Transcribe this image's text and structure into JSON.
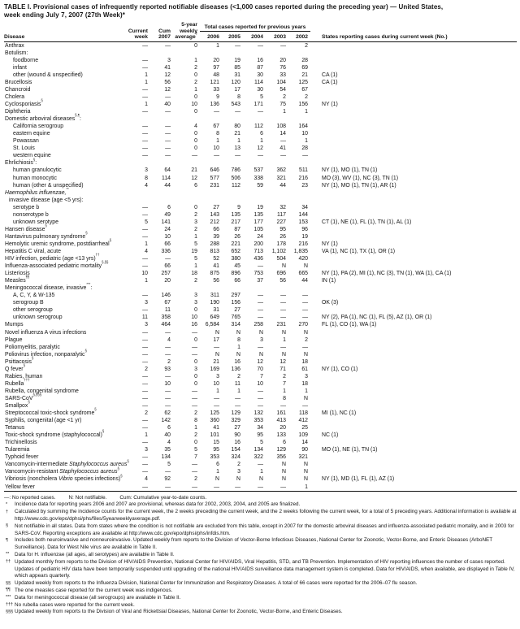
{
  "title": {
    "line1": "TABLE I. Provisional cases of infrequently reported notifiable diseases (<1,000 cases reported during the preceding year) — United States,",
    "line2": "week ending July 7, 2007 (27th Week)*"
  },
  "header": {
    "disease": "Disease",
    "current_week": "Current\nweek",
    "cum": "Cum\n2007",
    "avg": "5-year\nweekly\naverage",
    "avg_sup": "†",
    "span": "Total cases reported for previous years",
    "years": [
      "2006",
      "2005",
      "2004",
      "2003",
      "2002"
    ],
    "states": "States reporting cases during current week (No.)"
  },
  "rows": [
    {
      "label": "Anthrax",
      "indent": 0,
      "v": [
        "—",
        "—",
        "0",
        "1",
        "—",
        "—",
        "—",
        "2"
      ],
      "s": ""
    },
    {
      "label": "Botulism:",
      "indent": 0,
      "v": [
        "",
        "",
        "",
        "",
        "",
        "",
        "",
        ""
      ],
      "s": ""
    },
    {
      "label": "foodborne",
      "indent": 2,
      "v": [
        "—",
        "3",
        "1",
        "20",
        "19",
        "16",
        "20",
        "28"
      ],
      "s": ""
    },
    {
      "label": "infant",
      "indent": 2,
      "v": [
        "—",
        "41",
        "2",
        "97",
        "85",
        "87",
        "76",
        "69"
      ],
      "s": ""
    },
    {
      "label": "other (wound & unspecified)",
      "indent": 2,
      "v": [
        "1",
        "12",
        "0",
        "48",
        "31",
        "30",
        "33",
        "21"
      ],
      "s": "CA (1)"
    },
    {
      "label": "Brucellosis",
      "indent": 0,
      "v": [
        "1",
        "56",
        "2",
        "121",
        "120",
        "114",
        "104",
        "125"
      ],
      "s": "CA (1)"
    },
    {
      "label": "Chancroid",
      "indent": 0,
      "v": [
        "—",
        "12",
        "1",
        "33",
        "17",
        "30",
        "54",
        "67"
      ],
      "s": ""
    },
    {
      "label": "Cholera",
      "indent": 0,
      "v": [
        "—",
        "—",
        "0",
        "9",
        "8",
        "5",
        "2",
        "2"
      ],
      "s": ""
    },
    {
      "label": "Cyclosporiasis",
      "sup": "§",
      "indent": 0,
      "v": [
        "1",
        "40",
        "10",
        "136",
        "543",
        "171",
        "75",
        "156"
      ],
      "s": "NY (1)"
    },
    {
      "label": "Diphtheria",
      "indent": 0,
      "v": [
        "—",
        "—",
        "0",
        "—",
        "—",
        "—",
        "1",
        "1"
      ],
      "s": ""
    },
    {
      "label": "Domestic arboviral diseases",
      "sup": "§,¶",
      "post": ":",
      "indent": 0,
      "v": [
        "",
        "",
        "",
        "",
        "",
        "",
        "",
        ""
      ],
      "s": ""
    },
    {
      "label": "California serogroup",
      "indent": 2,
      "v": [
        "—",
        "—",
        "4",
        "67",
        "80",
        "112",
        "108",
        "164"
      ],
      "s": ""
    },
    {
      "label": "eastern equine",
      "indent": 2,
      "v": [
        "—",
        "—",
        "0",
        "8",
        "21",
        "6",
        "14",
        "10"
      ],
      "s": ""
    },
    {
      "label": "Powassan",
      "indent": 2,
      "v": [
        "—",
        "—",
        "0",
        "1",
        "1",
        "1",
        "—",
        "1"
      ],
      "s": ""
    },
    {
      "label": "St. Louis",
      "indent": 2,
      "v": [
        "—",
        "—",
        "0",
        "10",
        "13",
        "12",
        "41",
        "28"
      ],
      "s": ""
    },
    {
      "label": "western equine",
      "indent": 2,
      "v": [
        "—",
        "—",
        "—",
        "—",
        "—",
        "—",
        "—",
        "—"
      ],
      "s": ""
    },
    {
      "label": "Ehrlichiosis",
      "sup": "§",
      "post": ":",
      "indent": 0,
      "v": [
        "",
        "",
        "",
        "",
        "",
        "",
        "",
        ""
      ],
      "s": ""
    },
    {
      "label": "human granulocytic",
      "indent": 2,
      "v": [
        "3",
        "64",
        "21",
        "646",
        "786",
        "537",
        "362",
        "511"
      ],
      "s": "NY (1), MO (1), TN (1)"
    },
    {
      "label": "human monocytic",
      "indent": 2,
      "v": [
        "8",
        "114",
        "12",
        "577",
        "506",
        "338",
        "321",
        "216"
      ],
      "s": "MO (3), WV (1), NC (3), TN (1)"
    },
    {
      "label": "human (other & unspecified)",
      "indent": 2,
      "v": [
        "4",
        "44",
        "6",
        "231",
        "112",
        "59",
        "44",
        "23"
      ],
      "s": "NY (1), MO (1), TN (1), AR (1)"
    },
    {
      "parts": [
        {
          "t": "Haemophilus influenzae,",
          "i": true
        }
      ],
      "sup": "**",
      "indent": 0,
      "v": [
        "",
        "",
        "",
        "",
        "",
        "",
        "",
        ""
      ],
      "s": ""
    },
    {
      "label": "invasive disease (age <5 yrs):",
      "indent": 1,
      "v": [
        "",
        "",
        "",
        "",
        "",
        "",
        "",
        ""
      ],
      "s": ""
    },
    {
      "label": "serotype b",
      "indent": 2,
      "v": [
        "—",
        "6",
        "0",
        "27",
        "9",
        "19",
        "32",
        "34"
      ],
      "s": ""
    },
    {
      "label": "nonserotype b",
      "indent": 2,
      "v": [
        "—",
        "49",
        "2",
        "143",
        "135",
        "135",
        "117",
        "144"
      ],
      "s": ""
    },
    {
      "label": "unknown serotype",
      "indent": 2,
      "v": [
        "5",
        "141",
        "3",
        "212",
        "217",
        "177",
        "227",
        "153"
      ],
      "s": "CT (1), NE (1), FL (1), TN (1), AL (1)"
    },
    {
      "label": "Hansen disease",
      "sup": "§",
      "indent": 0,
      "v": [
        "—",
        "24",
        "2",
        "66",
        "87",
        "105",
        "95",
        "96"
      ],
      "s": ""
    },
    {
      "label": "Hantavirus pulmonary syndrome",
      "sup": "§",
      "indent": 0,
      "v": [
        "—",
        "10",
        "1",
        "39",
        "26",
        "24",
        "26",
        "19"
      ],
      "s": ""
    },
    {
      "label": "Hemolytic uremic syndrome, postdiarrheal",
      "sup": "§",
      "indent": 0,
      "v": [
        "1",
        "66",
        "5",
        "288",
        "221",
        "200",
        "178",
        "216"
      ],
      "s": "NY (1)"
    },
    {
      "label": "Hepatitis C viral, acute",
      "indent": 0,
      "v": [
        "4",
        "336",
        "19",
        "813",
        "652",
        "713",
        "1,102",
        "1,835"
      ],
      "s": "VA (1), NC (1), TX (1), OR (1)"
    },
    {
      "label": "HIV infection, pediatric (age <13 yrs)",
      "sup": "††",
      "indent": 0,
      "v": [
        "—",
        "—",
        "5",
        "52",
        "380",
        "436",
        "504",
        "420"
      ],
      "s": ""
    },
    {
      "label": "Influenza-associated pediatric mortality",
      "sup": "§,§§",
      "indent": 0,
      "v": [
        "—",
        "66",
        "1",
        "41",
        "45",
        "—",
        "N",
        "N"
      ],
      "s": ""
    },
    {
      "label": "Listeriosis",
      "indent": 0,
      "v": [
        "10",
        "257",
        "18",
        "875",
        "896",
        "753",
        "696",
        "665"
      ],
      "s": "NY (1), PA (2), MI (1), NC (3), TN (1), WA (1), CA (1)"
    },
    {
      "label": "Measles",
      "sup": "¶¶",
      "indent": 0,
      "v": [
        "1",
        "20",
        "2",
        "56",
        "66",
        "37",
        "56",
        "44"
      ],
      "s": "IN (1)"
    },
    {
      "label": "Meningococcal disease, invasive",
      "sup": "***",
      "post": ":",
      "indent": 0,
      "v": [
        "",
        "",
        "",
        "",
        "",
        "",
        "",
        ""
      ],
      "s": ""
    },
    {
      "label": "A, C, Y, & W-135",
      "indent": 2,
      "v": [
        "—",
        "146",
        "3",
        "311",
        "297",
        "—",
        "—",
        "—"
      ],
      "s": ""
    },
    {
      "label": "serogroup B",
      "indent": 2,
      "v": [
        "3",
        "67",
        "3",
        "190",
        "156",
        "—",
        "—",
        "—"
      ],
      "s": "OK (3)"
    },
    {
      "label": "other serogroup",
      "indent": 2,
      "v": [
        "—",
        "11",
        "0",
        "31",
        "27",
        "—",
        "—",
        "—"
      ],
      "s": ""
    },
    {
      "label": "unknown serogroup",
      "indent": 2,
      "v": [
        "11",
        "358",
        "10",
        "649",
        "765",
        "—",
        "—",
        "—"
      ],
      "s": "NY (2), PA (1), NC (1), FL (5), AZ (1), OR (1)"
    },
    {
      "label": "Mumps",
      "indent": 0,
      "v": [
        "3",
        "464",
        "16",
        "6,584",
        "314",
        "258",
        "231",
        "270"
      ],
      "s": "FL (1), CO (1), WA (1)"
    },
    {
      "label": "Novel influenza A virus infections",
      "indent": 0,
      "v": [
        "—",
        "—",
        "—",
        "N",
        "N",
        "N",
        "N",
        "N"
      ],
      "s": ""
    },
    {
      "label": "Plague",
      "indent": 0,
      "v": [
        "—",
        "4",
        "0",
        "17",
        "8",
        "3",
        "1",
        "2"
      ],
      "s": ""
    },
    {
      "label": "Poliomyelitis, paralytic",
      "indent": 0,
      "v": [
        "—",
        "—",
        "—",
        "—",
        "1",
        "—",
        "—",
        "—"
      ],
      "s": ""
    },
    {
      "label": "Poliovirus infection, nonparalytic",
      "sup": "§",
      "indent": 0,
      "v": [
        "—",
        "—",
        "—",
        "N",
        "N",
        "N",
        "N",
        "N"
      ],
      "s": ""
    },
    {
      "label": "Psittacosis",
      "sup": "§",
      "indent": 0,
      "v": [
        "—",
        "2",
        "0",
        "21",
        "16",
        "12",
        "12",
        "18"
      ],
      "s": ""
    },
    {
      "label": "Q fever",
      "sup": "§",
      "indent": 0,
      "v": [
        "2",
        "93",
        "3",
        "169",
        "136",
        "70",
        "71",
        "61"
      ],
      "s": "NY (1), CO (1)"
    },
    {
      "label": "Rabies, human",
      "indent": 0,
      "v": [
        "—",
        "—",
        "0",
        "3",
        "2",
        "7",
        "2",
        "3"
      ],
      "s": ""
    },
    {
      "label": "Rubella",
      "sup": "†††",
      "indent": 0,
      "v": [
        "—",
        "10",
        "0",
        "10",
        "11",
        "10",
        "7",
        "18"
      ],
      "s": ""
    },
    {
      "label": "Rubella, congenital syndrome",
      "indent": 0,
      "v": [
        "—",
        "—",
        "—",
        "1",
        "1",
        "—",
        "1",
        "1"
      ],
      "s": ""
    },
    {
      "label": "SARS-CoV",
      "sup": "§,§§§",
      "indent": 0,
      "v": [
        "—",
        "—",
        "—",
        "—",
        "—",
        "—",
        "8",
        "N"
      ],
      "s": ""
    },
    {
      "label": "Smallpox",
      "sup": "§",
      "indent": 0,
      "v": [
        "—",
        "—",
        "—",
        "—",
        "—",
        "—",
        "—",
        "—"
      ],
      "s": ""
    },
    {
      "label": "Streptococcal toxic-shock syndrome",
      "sup": "§",
      "indent": 0,
      "v": [
        "2",
        "62",
        "2",
        "125",
        "129",
        "132",
        "161",
        "118"
      ],
      "s": "MI (1), NC (1)"
    },
    {
      "label": "Syphilis, congenital (age <1 yr)",
      "indent": 0,
      "v": [
        "—",
        "142",
        "8",
        "360",
        "329",
        "353",
        "413",
        "412"
      ],
      "s": ""
    },
    {
      "label": "Tetanus",
      "indent": 0,
      "v": [
        "—",
        "6",
        "1",
        "41",
        "27",
        "34",
        "20",
        "25"
      ],
      "s": ""
    },
    {
      "label": "Toxic-shock syndrome (staphylococcal)",
      "sup": "§",
      "indent": 0,
      "v": [
        "1",
        "40",
        "2",
        "101",
        "90",
        "95",
        "133",
        "109"
      ],
      "s": "NC (1)"
    },
    {
      "label": "Trichinellosis",
      "indent": 0,
      "v": [
        "—",
        "4",
        "0",
        "15",
        "16",
        "5",
        "6",
        "14"
      ],
      "s": ""
    },
    {
      "label": "Tularemia",
      "indent": 0,
      "v": [
        "3",
        "35",
        "5",
        "95",
        "154",
        "134",
        "129",
        "90"
      ],
      "s": "MO (1), NE (1), TN (1)"
    },
    {
      "label": "Typhoid fever",
      "indent": 0,
      "v": [
        "—",
        "134",
        "7",
        "353",
        "324",
        "322",
        "356",
        "321"
      ],
      "s": ""
    },
    {
      "parts": [
        {
          "t": "Vancomycin-intermediate ",
          "i": false
        },
        {
          "t": "Staphylococcus aureus",
          "i": true
        }
      ],
      "sup": "§",
      "indent": 0,
      "v": [
        "—",
        "5",
        "—",
        "6",
        "2",
        "—",
        "N",
        "N"
      ],
      "s": ""
    },
    {
      "parts": [
        {
          "t": "Vancomycin-resistant ",
          "i": false
        },
        {
          "t": "Staphylococcus aureus",
          "i": true
        }
      ],
      "sup": "§",
      "indent": 0,
      "v": [
        "—",
        "—",
        "—",
        "1",
        "3",
        "1",
        "N",
        "N"
      ],
      "s": ""
    },
    {
      "parts": [
        {
          "t": "Vibriosis (noncholera ",
          "i": false
        },
        {
          "t": "Vibrio",
          "i": true
        },
        {
          "t": " species infections)",
          "i": false
        }
      ],
      "sup": "§",
      "indent": 0,
      "v": [
        "4",
        "92",
        "2",
        "N",
        "N",
        "N",
        "N",
        "N"
      ],
      "s": "NY (1), MD (1), FL (1), AZ (1)"
    },
    {
      "label": "Yellow fever",
      "indent": 0,
      "v": [
        "—",
        "—",
        "—",
        "—",
        "—",
        "—",
        "—",
        "1"
      ],
      "s": ""
    }
  ],
  "legend": [
    "—: No reported cases.",
    "N: Not notifiable.",
    "Cum: Cumulative year-to-date counts."
  ],
  "footnotes": [
    {
      "m": "*",
      "t": "Incidence data for reporting years 2006 and 2007 are provisional, whereas data for 2002, 2003, 2004, and 2005 are finalized."
    },
    {
      "m": "†",
      "t": "Calculated by summing the incidence counts for the current week, the 2 weeks preceding the current week, and the 2 weeks following the current week, for a total of 5 preceding years. Additional information is available at http://www.cdc.gov/epo/dphsi/phs/files/5yearweeklyaverage.pdf."
    },
    {
      "m": "§",
      "t": "Not notifiable in all states. Data from states where the condition is not notifiable are excluded from this table, except in 2007 for the domestic arboviral diseases and influenza-associated pediatric mortality, and in 2003 for SARS-CoV. Reporting exceptions are available at http://www.cdc.gov/epo/dphsi/phs/infdis.htm."
    },
    {
      "m": "¶",
      "t": "Includes both neuroinvasive and nonneuroinvasive. Updated weekly from reports to the Division of Vector-Borne Infectious Diseases, National Center for Zoonotic, Vector-Borne, and Enteric Diseases (ArboNET Surveillance). Data for West Nile virus are available in Table II."
    },
    {
      "m": "**",
      "t": "Data for H. influenzae (all ages, all serotypes) are available in Table II."
    },
    {
      "m": "††",
      "t": "Updated monthly from reports to the Division of HIV/AIDS Prevention, National Center for HIV/AIDS, Viral Hepatitis, STD, and TB Prevention. Implementation of HIV reporting influences the number of cases reported. Updates of pediatric HIV data have been temporarily suspended until upgrading of the national HIV/AIDS surveillance data management system is completed. Data for HIV/AIDS, when available, are displayed in Table IV, which appears quarterly."
    },
    {
      "m": "§§",
      "t": "Updated weekly from reports to the Influenza Division, National Center for Immunization and Respiratory Diseases. A total of 66 cases were reported for the 2006–07 flu season."
    },
    {
      "m": "¶¶",
      "t": "The one measles case reported for the current week was indigenous."
    },
    {
      "m": "***",
      "t": "Data for meningococcal disease (all serogroups) are available in Table II."
    },
    {
      "m": "†††",
      "t": "No rubella cases were reported for the current week."
    },
    {
      "m": "§§§",
      "t": "Updated weekly from reports to the Division of Viral and Rickettsial Diseases, National Center for Zoonotic, Vector-Borne, and Enteric Diseases."
    }
  ]
}
